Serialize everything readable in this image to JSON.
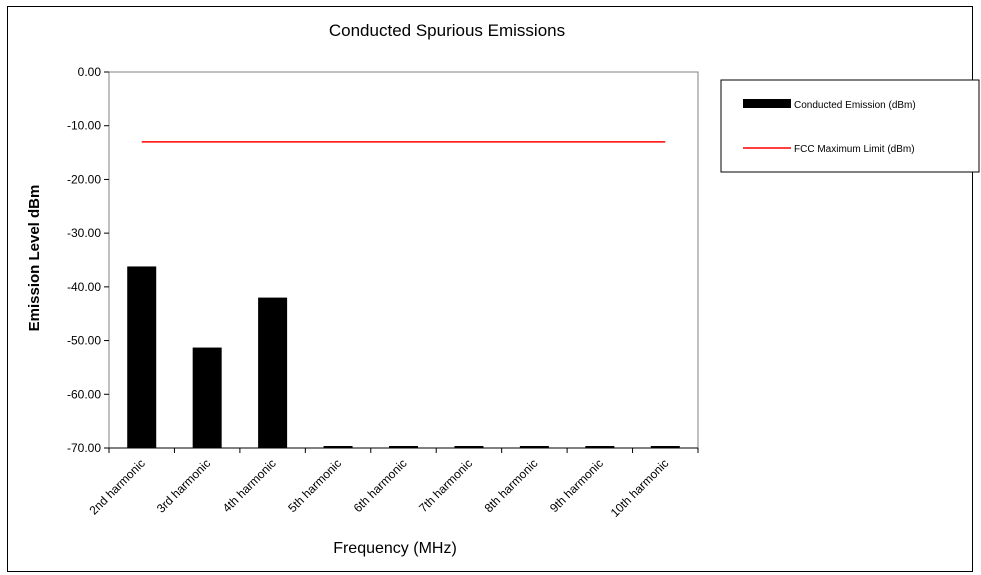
{
  "chart_data": {
    "type": "bar",
    "title": "Conducted Spurious Emissions",
    "xlabel": "Frequency (MHz)",
    "ylabel": "Emission Level dBm",
    "ylim": [
      -70,
      0
    ],
    "y_ticks": [
      "0.00",
      "-10.00",
      "-20.00",
      "-30.00",
      "-40.00",
      "-50.00",
      "-60.00",
      "-70.00"
    ],
    "categories": [
      "2nd harmonic",
      "3rd harmonic",
      "4th harmonic",
      "5th harmonic",
      "6th harmonic",
      "7th harmonic",
      "8th harmonic",
      "9th harmonic",
      "10th harmonic"
    ],
    "series": [
      {
        "name": "Conducted Emission (dBm)",
        "kind": "bar",
        "color": "#000000",
        "values": [
          -36.2,
          -51.3,
          -42.0,
          -70.0,
          -70.0,
          -70.0,
          -70.0,
          -70.0,
          -70.0
        ]
      },
      {
        "name": "FCC Maximum Limit (dBm)",
        "kind": "line",
        "color": "#ff0000",
        "values": [
          -13,
          -13,
          -13,
          -13,
          -13,
          -13,
          -13,
          -13,
          -13
        ]
      }
    ],
    "grid": false,
    "legend_position": "right"
  }
}
